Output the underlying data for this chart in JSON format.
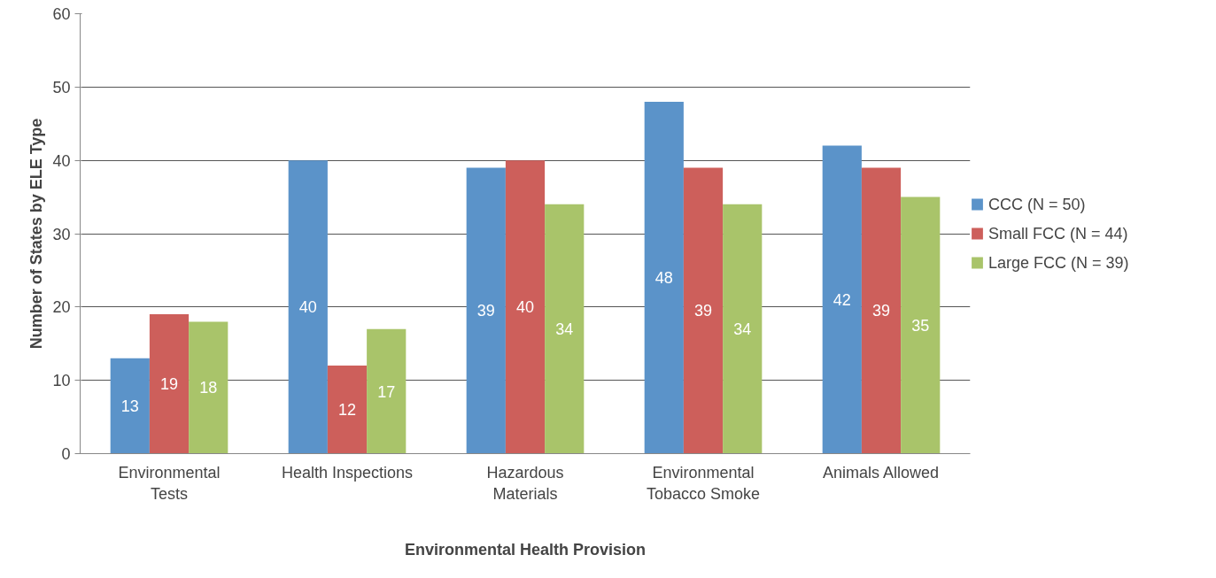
{
  "chart_data": {
    "type": "bar",
    "xlabel": "Environmental Health Provision",
    "ylabel": "Number of States by ELE Type",
    "categories": [
      "Environmental Tests",
      "Health Inspections",
      "Hazardous Materials",
      "Environmental Tobacco Smoke",
      "Animals Allowed"
    ],
    "series": [
      {
        "name": "CCC (N = 50)",
        "color": "#5b93c9",
        "values": [
          13,
          40,
          39,
          48,
          42
        ]
      },
      {
        "name": "Small FCC (N = 44)",
        "color": "#cd5f5b",
        "values": [
          19,
          12,
          40,
          39,
          39
        ]
      },
      {
        "name": "Large FCC (N = 39)",
        "color": "#a9c46a",
        "values": [
          18,
          17,
          34,
          34,
          35
        ]
      }
    ],
    "ylim": [
      0,
      60
    ],
    "yticks": [
      0,
      10,
      20,
      30,
      40,
      50,
      60
    ],
    "grid": "y",
    "legend": "right",
    "data_labels": true
  }
}
